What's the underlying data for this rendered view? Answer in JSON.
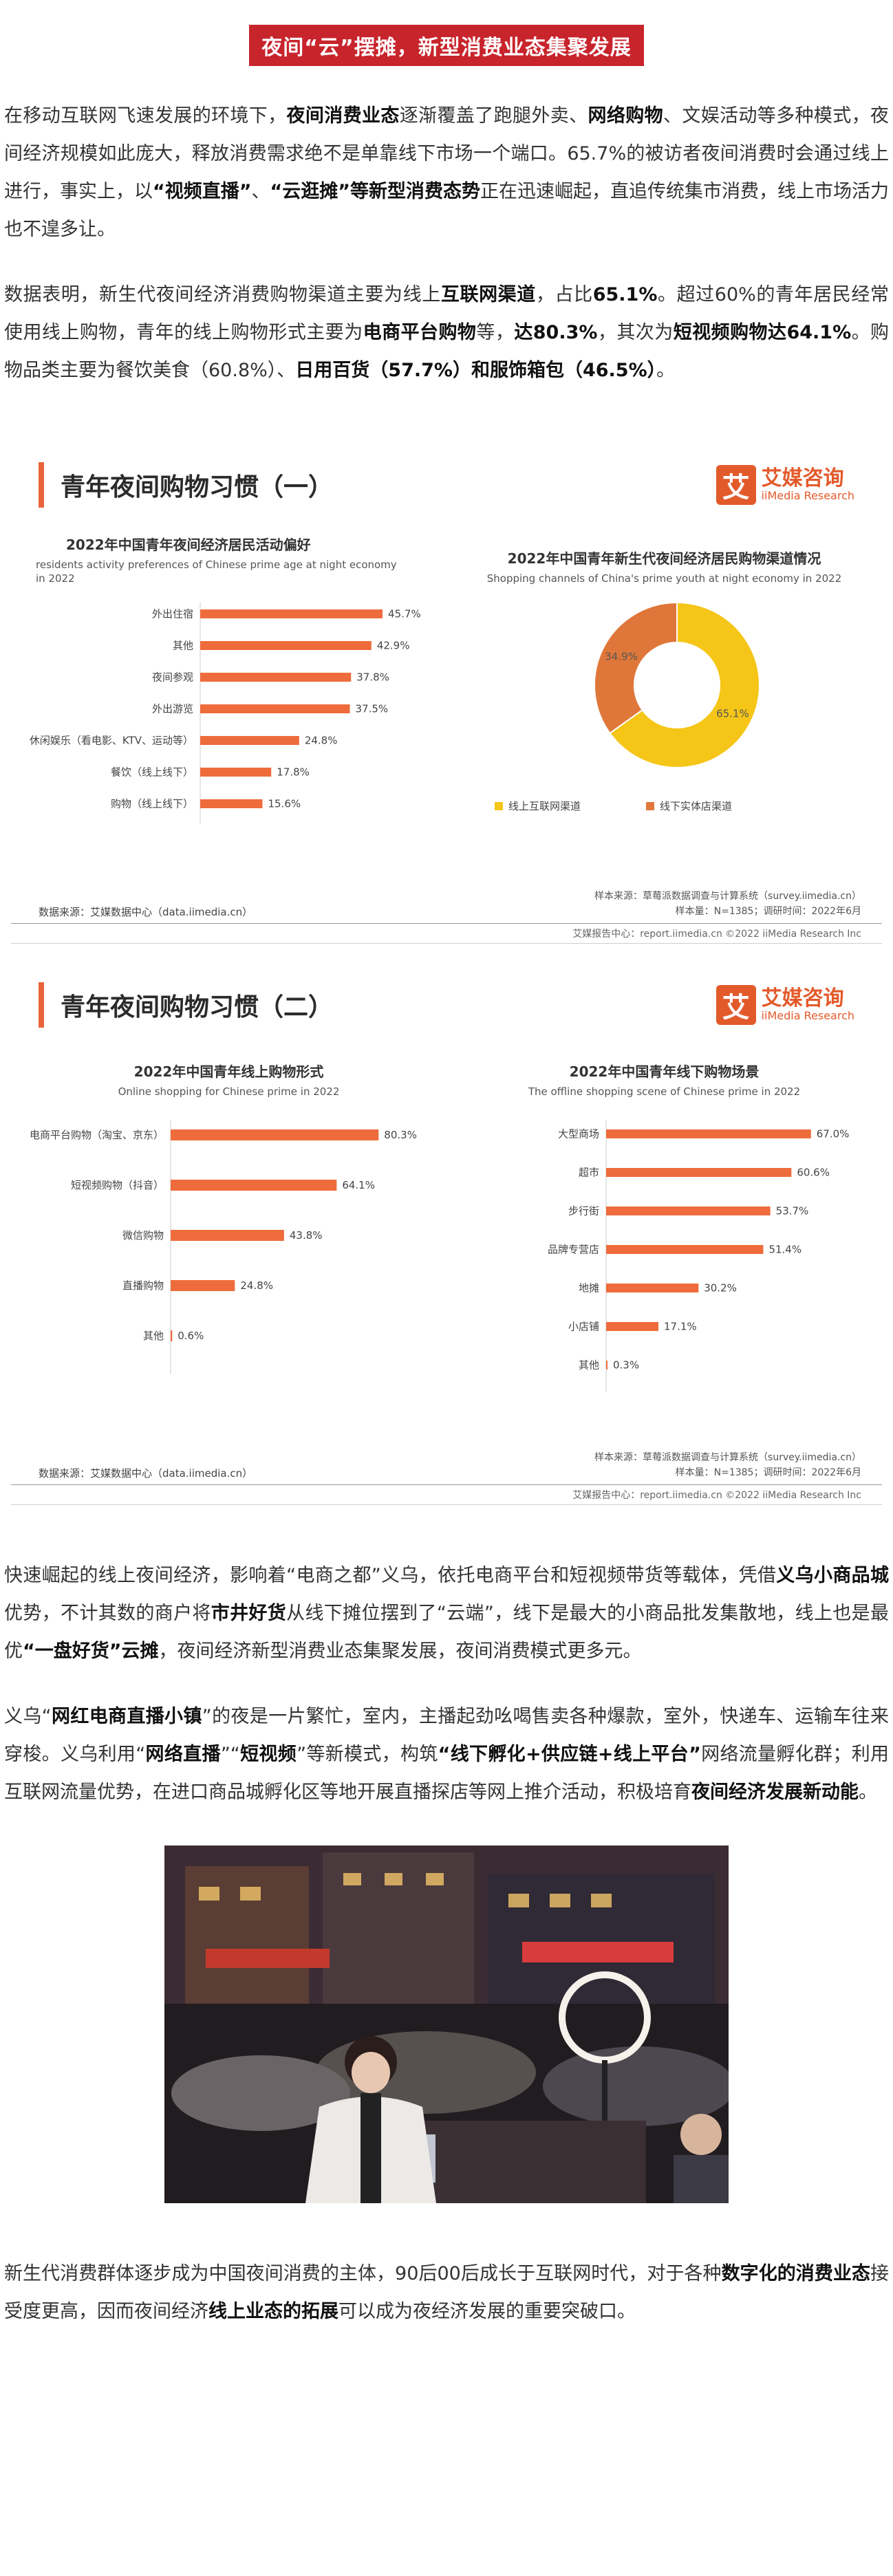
{
  "title": "夜间“云”摆摊，新型消费业态集聚发展",
  "para1": [
    {
      "t": "在移动互联网飞速发展的环境下，",
      "b": false
    },
    {
      "t": "夜间消费业态",
      "b": true
    },
    {
      "t": "逐渐覆盖了跑腿外卖、",
      "b": false
    },
    {
      "t": "网络购物",
      "b": true
    },
    {
      "t": "、文娱活动等多种模式，夜间经济规模如此庞大，释放消费需求绝不是单靠线下市场一个端口。65.7%的被访者夜间消费时会通过线上进行，事实上，以",
      "b": false
    },
    {
      "t": "“视频直播”",
      "b": true
    },
    {
      "t": "、",
      "b": false
    },
    {
      "t": "“云逛摊”等新型消费态势",
      "b": true
    },
    {
      "t": "正在迅速崛起，直追传统集市消费，线上市场活力也不遑多让。",
      "b": false
    }
  ],
  "para2": [
    {
      "t": "数据表明，新生代夜间经济消费购物渠道主要为线上",
      "b": false
    },
    {
      "t": "互联网渠道",
      "b": true
    },
    {
      "t": "，占比",
      "b": false
    },
    {
      "t": "65.1%",
      "b": true
    },
    {
      "t": "。超过60%的青年居民经常使用线上购物，青年的线上购物形式主要为",
      "b": false
    },
    {
      "t": "电商平台购物",
      "b": true
    },
    {
      "t": "等，",
      "b": false
    },
    {
      "t": "达80.3%",
      "b": true
    },
    {
      "t": "，其次为",
      "b": false
    },
    {
      "t": "短视频购物达64.1%",
      "b": true
    },
    {
      "t": "。购物品类主要为餐饮美食（60.8%）、",
      "b": false
    },
    {
      "t": "日用百货（57.7%）和服饰箱包（46.5%）",
      "b": true
    },
    {
      "t": "。",
      "b": false
    }
  ],
  "fig1": {
    "heading": "青年夜间购物习惯（一）",
    "brand_name": "艾媒咨询",
    "brand_sub": "iiMedia Research",
    "brand_mark": "艾",
    "source": "数据来源：艾媒数据中心（data.iimedia.cn）",
    "note1": "样本来源：草莓派数据调查与计算系统（survey.iimedia.cn）",
    "note2": "样本量：N=1385；调研时间：2022年6月",
    "credit": "艾媒报告中心：report.iimedia.cn  ©2022  iiMedia Research  Inc"
  },
  "fig2": {
    "heading": "青年夜间购物习惯（二）",
    "brand_name": "艾媒咨询",
    "brand_sub": "iiMedia Research",
    "brand_mark": "艾",
    "source": "数据来源：艾媒数据中心（data.iimedia.cn）",
    "note1": "样本来源：草莓派数据调查与计算系统（survey.iimedia.cn）",
    "note2": "样本量：N=1385；调研时间：2022年6月",
    "credit": "艾媒报告中心：report.iimedia.cn  ©2022  iiMedia Research  Inc"
  },
  "chart_data": [
    {
      "type": "bar",
      "orientation": "horizontal",
      "title": "2022年中国青年夜间经济居民活动偏好",
      "subtitle": "residents activity preferences of Chinese prime age at night economy in 2022",
      "categories": [
        "外出住宿",
        "其他",
        "夜间参观",
        "外出游览",
        "休闲娱乐（看电影、KTV、运动等）",
        "餐饮（线上线下）",
        "购物（线上线下）"
      ],
      "values": [
        45.7,
        42.9,
        37.8,
        37.5,
        24.8,
        17.8,
        15.6
      ],
      "value_labels": [
        "45.7%",
        "42.9%",
        "37.8%",
        "37.5%",
        "24.8%",
        "17.8%",
        "15.6%"
      ],
      "xlim": [
        0,
        50
      ],
      "color": "#ee6c3c"
    },
    {
      "type": "pie",
      "donut": true,
      "title": "2022年中国青年新生代夜间经济居民购物渠道情况",
      "subtitle": "Shopping channels of China's prime youth at night economy in 2022",
      "categories": [
        "线上互联网渠道",
        "线下实体店渠道"
      ],
      "values": [
        65.1,
        34.9
      ],
      "value_labels": [
        "65.1%",
        "34.9%"
      ],
      "colors": [
        "#f5c518",
        "#e0773a"
      ],
      "legend": "bottom"
    },
    {
      "type": "bar",
      "orientation": "horizontal",
      "title": "2022年中国青年线上购物形式",
      "subtitle": "Online shopping for Chinese prime in 2022",
      "categories": [
        "电商平台购物（淘宝、京东）",
        "短视频购物（抖音）",
        "微信购物",
        "直播购物",
        "其他"
      ],
      "values": [
        80.3,
        64.1,
        43.8,
        24.8,
        0.6
      ],
      "value_labels": [
        "80.3%",
        "64.1%",
        "43.8%",
        "24.8%",
        "0.6%"
      ],
      "xlim": [
        0,
        85
      ],
      "color": "#ee6c3c"
    },
    {
      "type": "bar",
      "orientation": "horizontal",
      "title": "2022年中国青年线下购物场景",
      "subtitle": "The offline shopping scene of Chinese prime in 2022",
      "categories": [
        "大型商场",
        "超市",
        "步行街",
        "品牌专营店",
        "地摊",
        "小店铺",
        "其他"
      ],
      "values": [
        67.0,
        60.6,
        53.7,
        51.4,
        30.2,
        17.1,
        0.3
      ],
      "value_labels": [
        "67.0%",
        "60.6%",
        "53.7%",
        "51.4%",
        "30.2%",
        "17.1%",
        "0.3%"
      ],
      "xlim": [
        0,
        72
      ],
      "color": "#ee6c3c"
    }
  ],
  "para3": [
    {
      "t": "快速崛起的线上夜间经济，影响着“电商之都”义乌，依托电商平台和短视频带货等载体，凭借",
      "b": false
    },
    {
      "t": "义乌小商品城",
      "b": true
    },
    {
      "t": "优势，不计其数的商户将",
      "b": false
    },
    {
      "t": "市井好货",
      "b": true
    },
    {
      "t": "从线下摊位摆到了“云端”，线下是最大的小商品批发集散地，线上也是最优",
      "b": false
    },
    {
      "t": "“一盘好货”云摊",
      "b": true
    },
    {
      "t": "，夜间经济新型消费业态集聚发展，夜间消费模式更多元。",
      "b": false
    }
  ],
  "para4": [
    {
      "t": "义乌“",
      "b": false
    },
    {
      "t": "网红电商直播小镇",
      "b": true
    },
    {
      "t": "”的夜是一片繁忙，室内，主播起劲吆喝售卖各种爆款，室外，快递车、运输车往来穿梭。义乌利用“",
      "b": false
    },
    {
      "t": "网络直播",
      "b": true
    },
    {
      "t": "”“",
      "b": false
    },
    {
      "t": "短视频",
      "b": true
    },
    {
      "t": "”等新模式，构筑",
      "b": false
    },
    {
      "t": "“线下孵化+供应链+线上平台”",
      "b": true
    },
    {
      "t": "网络流量孵化群；利用互联网流量优势，在进口商品城孵化区等地开展直播探店等网上推介活动，积极培育",
      "b": false
    },
    {
      "t": "夜间经济发展新动能",
      "b": true
    },
    {
      "t": "。",
      "b": false
    }
  ],
  "para5": [
    {
      "t": "新生代消费群体逐步成为中国夜间消费的主体，90后00后成长于互联网时代，对于各种",
      "b": false
    },
    {
      "t": "数字化的消费业态",
      "b": true
    },
    {
      "t": "接受度更高，因而夜间经济",
      "b": false
    },
    {
      "t": "线上业态的拓展",
      "b": true
    },
    {
      "t": "可以成为夜经济发展的重要突破口。",
      "b": false
    }
  ]
}
